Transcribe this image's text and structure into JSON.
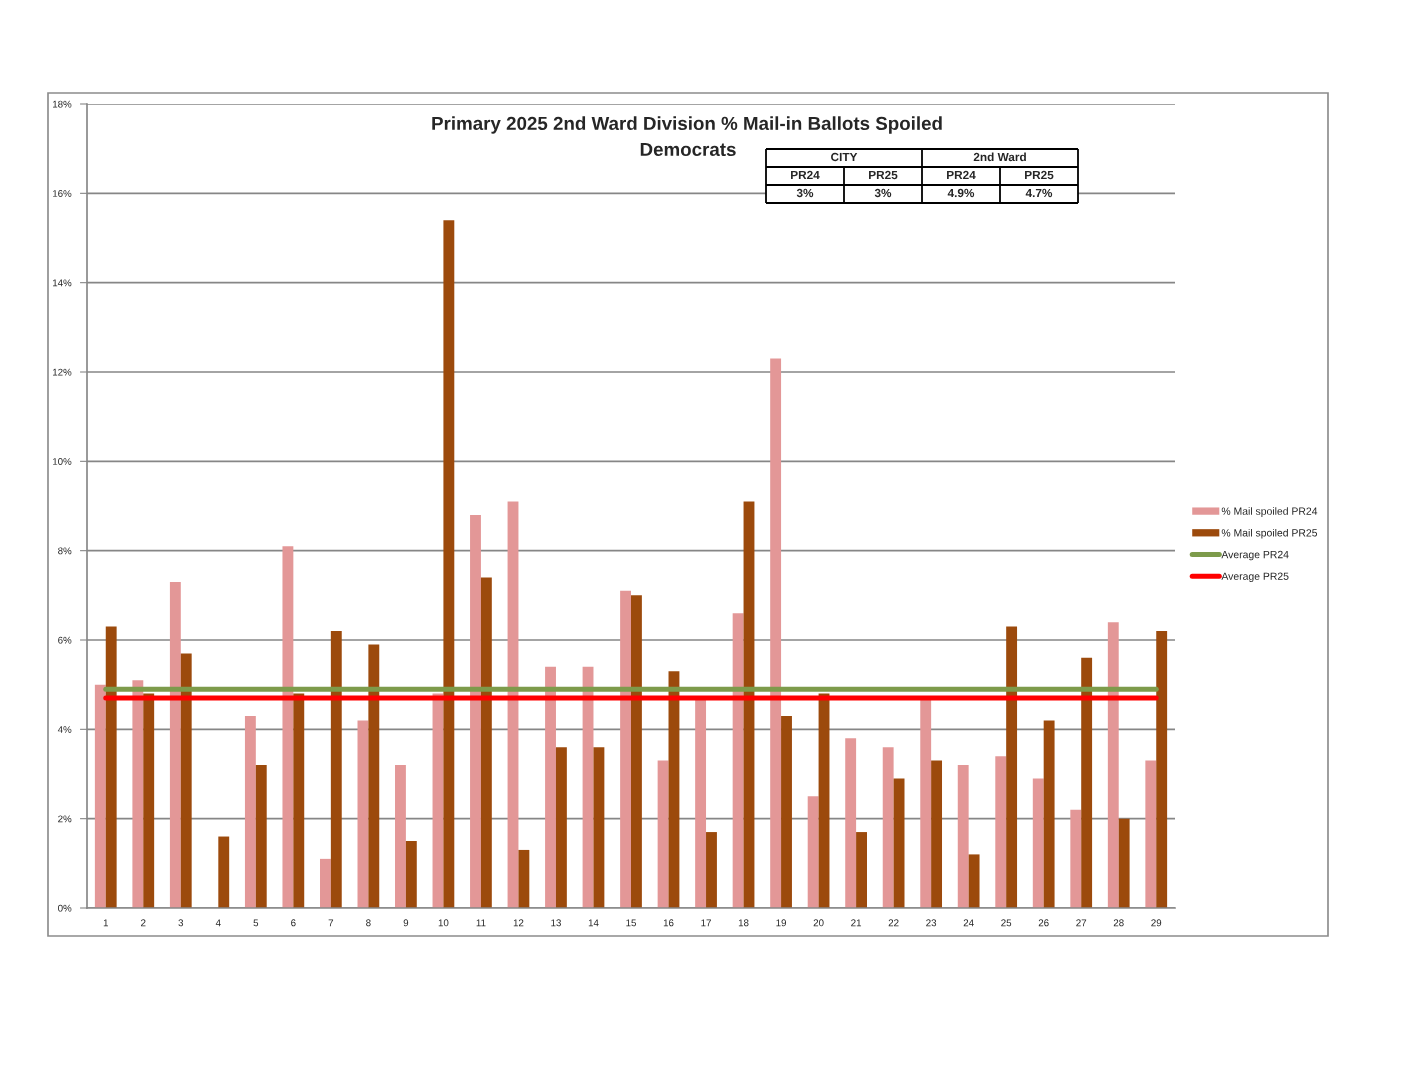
{
  "chart_data": {
    "type": "bar",
    "title": "Primary 2025 2nd Ward Division % Mail-in Ballots Spoiled",
    "subtitle": "Democrats",
    "categories": [
      "1",
      "2",
      "3",
      "4",
      "5",
      "6",
      "7",
      "8",
      "9",
      "10",
      "11",
      "12",
      "13",
      "14",
      "15",
      "16",
      "17",
      "18",
      "19",
      "20",
      "21",
      "22",
      "23",
      "24",
      "25",
      "26",
      "27",
      "28",
      "29"
    ],
    "series": [
      {
        "name": "% Mail spoiled PR24",
        "color": "#e39797",
        "values": [
          5.0,
          5.1,
          7.3,
          null,
          4.3,
          8.1,
          1.1,
          4.2,
          3.2,
          4.8,
          8.8,
          9.1,
          5.4,
          5.4,
          7.1,
          3.3,
          4.7,
          6.6,
          12.3,
          2.5,
          3.8,
          3.6,
          4.7,
          3.2,
          3.4,
          2.9,
          2.2,
          6.4,
          3.3
        ]
      },
      {
        "name": "% Mail spoiled PR25",
        "color": "#9c4a0c",
        "values": [
          6.3,
          4.8,
          5.7,
          1.6,
          3.2,
          4.8,
          6.2,
          5.9,
          1.5,
          15.4,
          7.4,
          1.3,
          3.6,
          3.6,
          7.0,
          5.3,
          1.7,
          9.1,
          4.3,
          4.8,
          1.7,
          2.9,
          3.3,
          1.2,
          6.3,
          4.2,
          5.6,
          2.0,
          6.2
        ]
      },
      {
        "name": "Average PR24",
        "type": "line",
        "color": "#7d9b4b",
        "values": [
          4.9,
          4.9,
          4.9,
          4.9,
          4.9,
          4.9,
          4.9,
          4.9,
          4.9,
          4.9,
          4.9,
          4.9,
          4.9,
          4.9,
          4.9,
          4.9,
          4.9,
          4.9,
          4.9,
          4.9,
          4.9,
          4.9,
          4.9,
          4.9,
          4.9,
          4.9,
          4.9,
          4.9,
          4.9
        ]
      },
      {
        "name": "Average PR25",
        "type": "line",
        "color": "#ff0000",
        "values": [
          4.7,
          4.7,
          4.7,
          4.7,
          4.7,
          4.7,
          4.7,
          4.7,
          4.7,
          4.7,
          4.7,
          4.7,
          4.7,
          4.7,
          4.7,
          4.7,
          4.7,
          4.7,
          4.7,
          4.7,
          4.7,
          4.7,
          4.7,
          4.7,
          4.7,
          4.7,
          4.7,
          4.7,
          4.7
        ]
      }
    ],
    "ylim": [
      0,
      18
    ],
    "yticks": [
      {
        "value": 0,
        "label": "0%"
      },
      {
        "value": 2,
        "label": "2%"
      },
      {
        "value": 4,
        "label": "4%"
      },
      {
        "value": 6,
        "label": "6%"
      },
      {
        "value": 8,
        "label": "8%"
      },
      {
        "value": 10,
        "label": "10%"
      },
      {
        "value": 12,
        "label": "12%"
      },
      {
        "value": 14,
        "label": "14%"
      },
      {
        "value": 16,
        "label": "16%"
      },
      {
        "value": 18,
        "label": "18%"
      }
    ],
    "grid": "y",
    "legend": "right",
    "line_style": "solid",
    "annotations": [
      "CITY",
      "2nd Ward",
      "PR24",
      "PR25",
      "PR24",
      "PR25",
      "3%",
      "3%",
      "4.9%",
      "4.7%"
    ]
  }
}
